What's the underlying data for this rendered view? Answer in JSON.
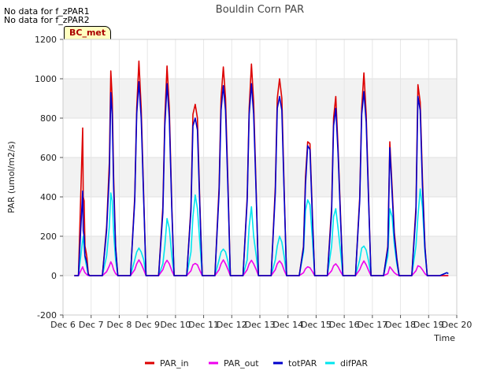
{
  "notes": [
    "No data for f_zPAR1",
    "No data for f_zPAR2"
  ],
  "badge": "BC_met",
  "chart_data": {
    "type": "line",
    "title": "Bouldin Corn PAR",
    "xlabel": "Time",
    "ylabel": "PAR (umol/m2/s)",
    "ylim": [
      -200,
      1200
    ],
    "yticks": [
      -200,
      0,
      200,
      400,
      600,
      800,
      1000,
      1200
    ],
    "xlim": [
      6,
      20
    ],
    "xticks": [
      6,
      7,
      8,
      9,
      10,
      11,
      12,
      13,
      14,
      15,
      16,
      17,
      18,
      19,
      20
    ],
    "xtick_labels": [
      "Dec 6",
      "Dec 7",
      "Dec 8",
      "Dec 9",
      "Dec 10",
      "Dec 11",
      "Dec 12",
      "Dec 13",
      "Dec 14",
      "Dec 15",
      "Dec 16",
      "Dec 17",
      "Dec 18",
      "Dec 19",
      "Dec 20"
    ],
    "grid": true,
    "legend_position": "bottom",
    "x": [
      6.4,
      6.55,
      6.7,
      6.72,
      6.75,
      6.78,
      6.82,
      6.85,
      6.9,
      6.95,
      7.4,
      7.55,
      7.65,
      7.7,
      7.75,
      7.8,
      7.87,
      7.95,
      8.4,
      8.55,
      8.62,
      8.7,
      8.78,
      8.87,
      8.95,
      9.4,
      9.55,
      9.62,
      9.7,
      9.78,
      9.87,
      9.95,
      10.4,
      10.55,
      10.62,
      10.7,
      10.78,
      10.87,
      10.95,
      11.4,
      11.55,
      11.62,
      11.7,
      11.78,
      11.87,
      11.95,
      12.4,
      12.55,
      12.62,
      12.7,
      12.78,
      12.87,
      12.95,
      13.4,
      13.55,
      13.62,
      13.7,
      13.78,
      13.87,
      13.95,
      14.4,
      14.55,
      14.62,
      14.7,
      14.78,
      14.87,
      14.95,
      15.4,
      15.55,
      15.62,
      15.7,
      15.78,
      15.87,
      15.95,
      16.4,
      16.55,
      16.62,
      16.7,
      16.78,
      16.87,
      16.95,
      17.4,
      17.55,
      17.62,
      17.7,
      17.78,
      17.87,
      17.95,
      18.4,
      18.55,
      18.62,
      18.7,
      18.78,
      18.87,
      18.95,
      19.4,
      19.65,
      19.7
    ],
    "series": [
      {
        "name": "PAR_in",
        "color": "#dd0000",
        "values": [
          0,
          0,
          750,
          400,
          380,
          150,
          120,
          90,
          10,
          0,
          0,
          250,
          580,
          1040,
          900,
          500,
          150,
          0,
          0,
          400,
          850,
          1090,
          850,
          400,
          0,
          0,
          350,
          800,
          1065,
          850,
          350,
          0,
          0,
          350,
          820,
          870,
          800,
          350,
          0,
          0,
          450,
          900,
          1060,
          900,
          450,
          0,
          0,
          400,
          850,
          1075,
          880,
          420,
          0,
          0,
          450,
          900,
          1000,
          900,
          400,
          0,
          0,
          150,
          500,
          680,
          670,
          300,
          0,
          0,
          350,
          800,
          910,
          650,
          300,
          0,
          0,
          400,
          850,
          1030,
          820,
          380,
          0,
          0,
          150,
          680,
          450,
          220,
          90,
          0,
          0,
          350,
          970,
          880,
          500,
          150,
          0,
          0,
          0,
          0
        ]
      },
      {
        "name": "PAR_out",
        "color": "#ee00ee",
        "values": [
          0,
          0,
          45,
          35,
          25,
          15,
          10,
          5,
          0,
          0,
          0,
          20,
          50,
          70,
          55,
          30,
          10,
          0,
          0,
          30,
          60,
          80,
          60,
          30,
          0,
          0,
          30,
          60,
          78,
          60,
          25,
          0,
          0,
          25,
          55,
          62,
          55,
          25,
          0,
          0,
          30,
          60,
          80,
          60,
          30,
          0,
          0,
          30,
          60,
          78,
          60,
          30,
          0,
          0,
          30,
          60,
          75,
          60,
          25,
          0,
          0,
          15,
          35,
          45,
          40,
          20,
          0,
          0,
          25,
          50,
          60,
          45,
          20,
          0,
          0,
          30,
          55,
          75,
          55,
          25,
          0,
          0,
          10,
          45,
          30,
          15,
          5,
          0,
          0,
          25,
          50,
          45,
          30,
          10,
          0,
          0,
          0,
          0
        ]
      },
      {
        "name": "totPAR",
        "color": "#0000cc",
        "values": [
          0,
          0,
          430,
          230,
          200,
          100,
          80,
          60,
          5,
          0,
          0,
          230,
          520,
          930,
          820,
          450,
          140,
          0,
          0,
          380,
          820,
          985,
          800,
          380,
          0,
          0,
          320,
          760,
          975,
          800,
          330,
          0,
          0,
          330,
          760,
          800,
          740,
          330,
          0,
          0,
          420,
          840,
          965,
          840,
          420,
          0,
          0,
          380,
          820,
          975,
          820,
          400,
          0,
          0,
          420,
          850,
          910,
          840,
          380,
          0,
          0,
          140,
          460,
          660,
          640,
          280,
          0,
          0,
          320,
          760,
          850,
          620,
          280,
          0,
          0,
          380,
          820,
          935,
          780,
          360,
          0,
          0,
          140,
          650,
          420,
          200,
          80,
          0,
          0,
          320,
          910,
          840,
          460,
          140,
          0,
          0,
          15,
          10
        ]
      },
      {
        "name": "difPAR",
        "color": "#00e5ee",
        "values": [
          0,
          0,
          180,
          200,
          150,
          90,
          60,
          40,
          5,
          0,
          0,
          100,
          250,
          420,
          380,
          220,
          80,
          0,
          0,
          80,
          120,
          140,
          120,
          80,
          0,
          0,
          60,
          150,
          290,
          240,
          100,
          0,
          0,
          120,
          300,
          410,
          340,
          160,
          0,
          0,
          80,
          120,
          135,
          120,
          70,
          0,
          0,
          80,
          250,
          350,
          200,
          100,
          0,
          0,
          80,
          150,
          200,
          170,
          90,
          0,
          0,
          120,
          330,
          385,
          360,
          180,
          0,
          0,
          150,
          300,
          340,
          240,
          120,
          0,
          0,
          80,
          140,
          150,
          130,
          70,
          0,
          0,
          100,
          340,
          300,
          160,
          60,
          0,
          0,
          150,
          300,
          440,
          350,
          120,
          0,
          0,
          15,
          10
        ]
      }
    ]
  }
}
